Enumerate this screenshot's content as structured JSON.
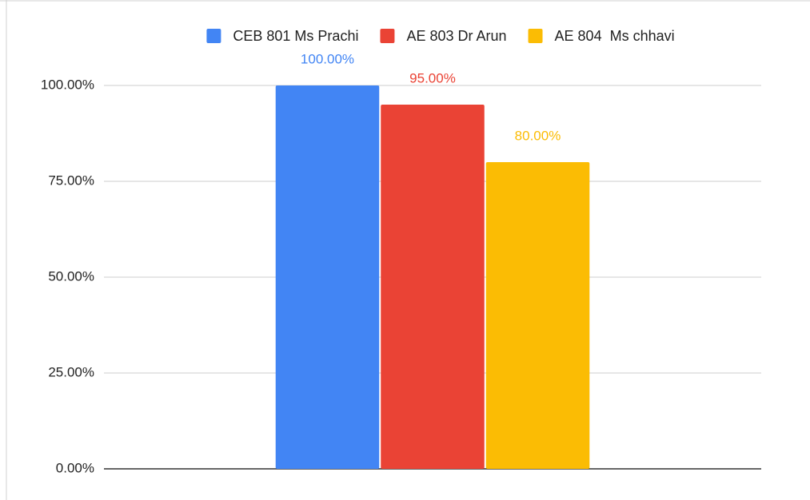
{
  "chart_data": {
    "type": "bar",
    "categories": [
      null
    ],
    "series": [
      {
        "name": "CEB 801 Ms Prachi",
        "color": "#4285f4",
        "values": [
          100
        ],
        "value_labels": [
          "100.00%"
        ]
      },
      {
        "name": "AE 803 Dr Arun",
        "color": "#ea4335",
        "values": [
          95
        ],
        "value_labels": [
          "95.00%"
        ]
      },
      {
        "name": "AE 804  Ms chhavi",
        "color": "#fbbc04",
        "values": [
          80
        ],
        "value_labels": [
          "80.00%"
        ]
      }
    ],
    "ylim": [
      0,
      100
    ],
    "yticks": [
      {
        "value": 0,
        "label": "0.00%"
      },
      {
        "value": 25,
        "label": "25.00%"
      },
      {
        "value": 50,
        "label": "50.00%"
      },
      {
        "value": 75,
        "label": "75.00%"
      },
      {
        "value": 100,
        "label": "100.00%"
      }
    ],
    "grid": true,
    "legend": "top"
  }
}
